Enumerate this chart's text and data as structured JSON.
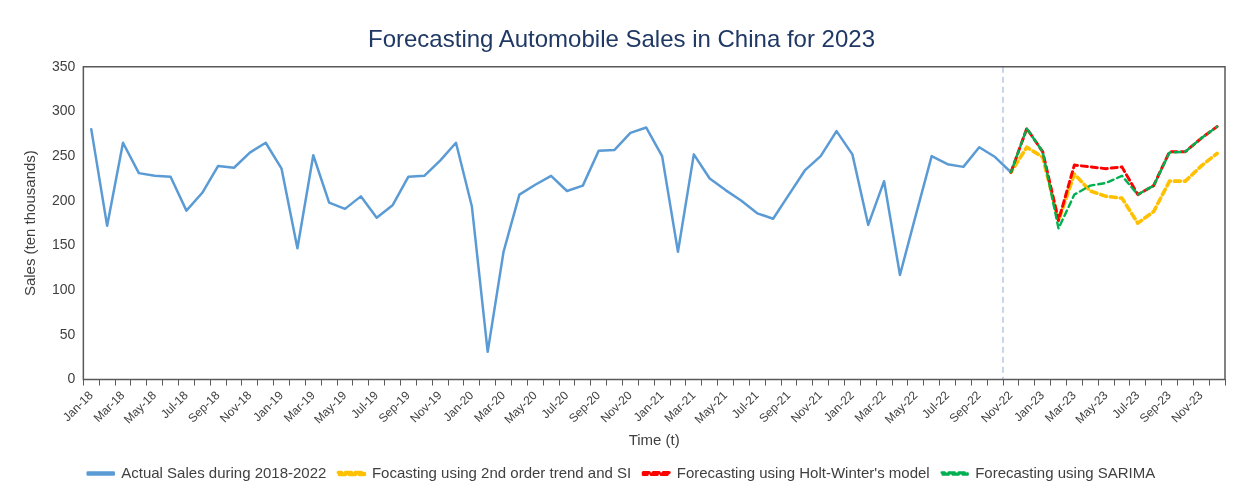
{
  "chart_data": {
    "type": "line",
    "title": "Forecasting Automobile Sales in China for 2023",
    "xlabel": "Time (t)",
    "ylabel": "Sales (ten thousands)",
    "categories": [
      "Jan-18",
      null,
      "Mar-18",
      null,
      "May-18",
      null,
      "Jul-18",
      null,
      "Sep-18",
      null,
      "Nov-18",
      null,
      "Jan-19",
      null,
      "Mar-19",
      null,
      "May-19",
      null,
      "Jul-19",
      null,
      "Sep-19",
      null,
      "Nov-19",
      null,
      "Jan-20",
      null,
      "Mar-20",
      null,
      "May-20",
      null,
      "Jul-20",
      null,
      "Sep-20",
      null,
      "Nov-20",
      null,
      "Jan-21",
      null,
      "Mar-21",
      null,
      "May-21",
      null,
      "Jul-21",
      null,
      "Sep-21",
      null,
      "Nov-21",
      null,
      "Jan-22",
      null,
      "Mar-22",
      null,
      "May-22",
      null,
      "Jul-22",
      null,
      "Sep-22",
      null,
      "Nov-22",
      null,
      "Jan-23",
      null,
      "Mar-23",
      null,
      "May-23",
      null,
      "Jul-23",
      null,
      "Sep-23",
      null,
      "Nov-23",
      null
    ],
    "series": [
      {
        "name": "Actual Sales during 2018-2022",
        "color": "#5b9bd5",
        "line_style": "solid",
        "values": [
          280,
          172,
          265,
          231,
          228,
          227,
          189,
          209,
          239,
          237,
          254,
          265,
          236,
          147,
          251,
          198,
          191,
          205,
          181,
          195,
          227,
          228,
          245,
          265,
          194,
          31,
          143,
          207,
          218,
          228,
          211,
          217,
          256,
          257,
          276,
          282,
          250,
          143,
          252,
          225,
          212,
          200,
          186,
          180,
          207,
          234,
          250,
          278,
          252,
          173,
          222,
          117,
          184,
          250,
          241,
          238,
          260,
          249,
          232,
          null,
          null,
          null,
          null,
          null,
          null,
          null,
          null,
          null,
          null,
          null,
          null,
          null
        ]
      },
      {
        "name": "Focasting using 2nd order trend and SI",
        "color": "#ffc000",
        "line_style": "dashed",
        "values": [
          null,
          null,
          null,
          null,
          null,
          null,
          null,
          null,
          null,
          null,
          null,
          null,
          null,
          null,
          null,
          null,
          null,
          null,
          null,
          null,
          null,
          null,
          null,
          null,
          null,
          null,
          null,
          null,
          null,
          null,
          null,
          null,
          null,
          null,
          null,
          null,
          null,
          null,
          null,
          null,
          null,
          null,
          null,
          null,
          null,
          null,
          null,
          null,
          null,
          null,
          null,
          null,
          null,
          null,
          null,
          null,
          null,
          null,
          232,
          260,
          249,
          178,
          230,
          211,
          205,
          203,
          175,
          188,
          222,
          222,
          239,
          253
        ]
      },
      {
        "name": "Forecasting using Holt-Winter's model",
        "color": "#ff0000",
        "line_style": "dashed",
        "values": [
          null,
          null,
          null,
          null,
          null,
          null,
          null,
          null,
          null,
          null,
          null,
          null,
          null,
          null,
          null,
          null,
          null,
          null,
          null,
          null,
          null,
          null,
          null,
          null,
          null,
          null,
          null,
          null,
          null,
          null,
          null,
          null,
          null,
          null,
          null,
          null,
          null,
          null,
          null,
          null,
          null,
          null,
          null,
          null,
          null,
          null,
          null,
          null,
          null,
          null,
          null,
          null,
          null,
          null,
          null,
          null,
          null,
          null,
          232,
          281,
          255,
          178,
          240,
          238,
          236,
          238,
          207,
          217,
          255,
          255,
          270,
          283
        ]
      },
      {
        "name": "Forecasting using SARIMA",
        "color": "#00b050",
        "line_style": "dashed",
        "values": [
          null,
          null,
          null,
          null,
          null,
          null,
          null,
          null,
          null,
          null,
          null,
          null,
          null,
          null,
          null,
          null,
          null,
          null,
          null,
          null,
          null,
          null,
          null,
          null,
          null,
          null,
          null,
          null,
          null,
          null,
          null,
          null,
          null,
          null,
          null,
          null,
          null,
          null,
          null,
          null,
          null,
          null,
          null,
          null,
          null,
          null,
          null,
          null,
          null,
          null,
          null,
          null,
          null,
          null,
          null,
          null,
          null,
          null,
          232,
          281,
          255,
          169,
          207,
          217,
          220,
          228,
          207,
          217,
          254,
          255,
          270,
          283
        ]
      }
    ],
    "ylim": [
      0,
      350
    ],
    "yticks": [
      0,
      50,
      100,
      150,
      200,
      250,
      300,
      350
    ],
    "grid": false,
    "legend": "bottom",
    "marker": "none",
    "ref_lines": [
      {
        "axis": "x",
        "value": "Nov-22",
        "color": "#8eaadb",
        "line_style": "dashed"
      }
    ]
  }
}
